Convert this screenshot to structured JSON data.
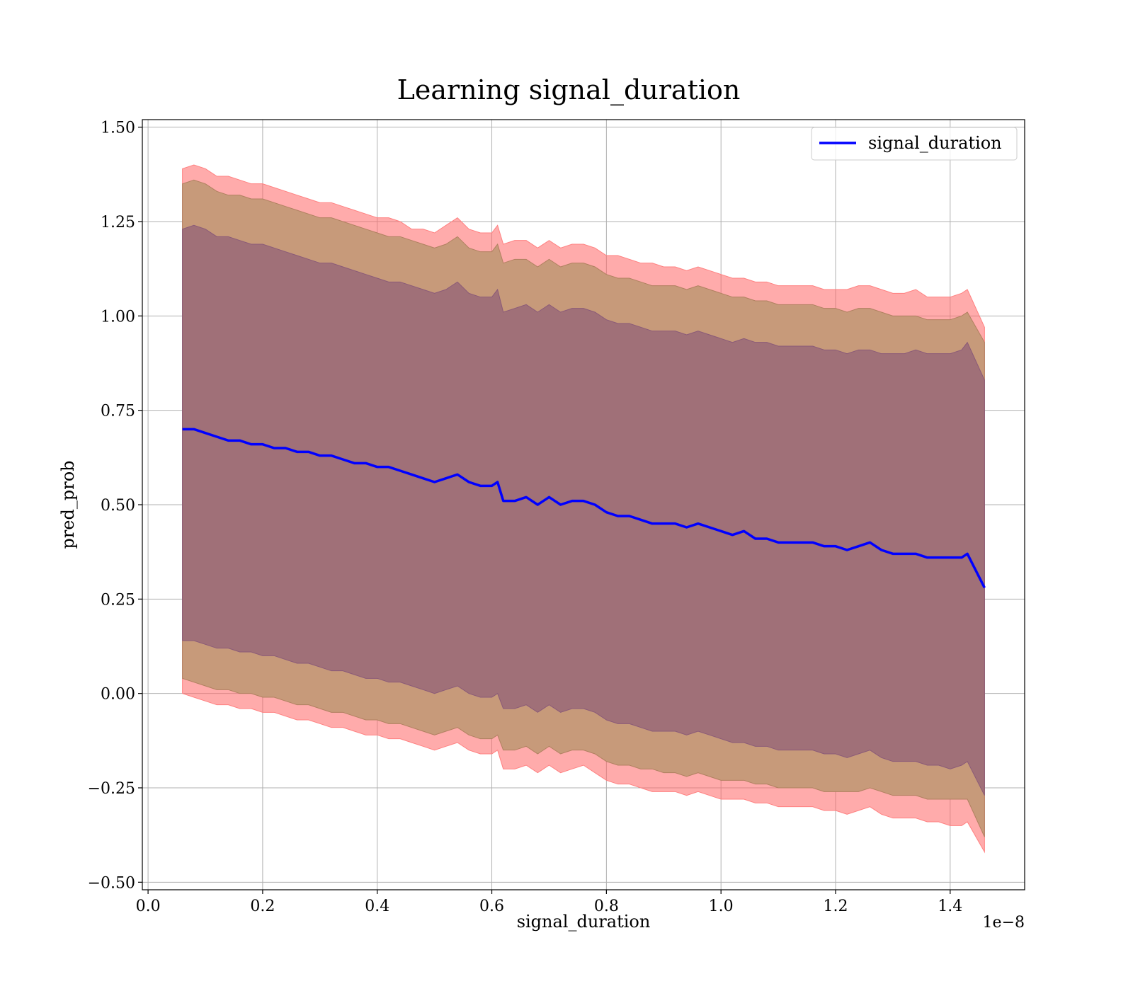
{
  "chart_data": {
    "type": "line",
    "title": "Learning signal_duration",
    "xlabel": "signal_duration",
    "ylabel": "pred_prob",
    "x_scale_label": "1e−8",
    "xlim": [
      -0.01,
      1.53
    ],
    "ylim": [
      -0.52,
      1.52
    ],
    "x_ticks": [
      0.0,
      0.2,
      0.4,
      0.6,
      0.8,
      1.0,
      1.2,
      1.4
    ],
    "x_tick_labels": [
      "0.0",
      "0.2",
      "0.4",
      "0.6",
      "0.8",
      "1.0",
      "1.2",
      "1.4"
    ],
    "y_ticks": [
      -0.5,
      -0.25,
      0.0,
      0.25,
      0.5,
      0.75,
      1.0,
      1.25,
      1.5
    ],
    "y_tick_labels": [
      "−0.50",
      "−0.25",
      "0.00",
      "0.25",
      "0.50",
      "0.75",
      "1.00",
      "1.25",
      "1.50"
    ],
    "grid": true,
    "legend_position": "top-right",
    "colors": {
      "line": "#0000ff",
      "band_outer": "#ff6666",
      "band_middle": "#c79a7a",
      "band_inner": "#a07078",
      "band_outer_edge": "#ff8080",
      "grid": "#b0b0b0"
    },
    "series": [
      {
        "name": "signal_duration",
        "x": [
          0.06,
          0.08,
          0.1,
          0.12,
          0.14,
          0.16,
          0.18,
          0.2,
          0.22,
          0.24,
          0.26,
          0.28,
          0.3,
          0.32,
          0.34,
          0.36,
          0.38,
          0.4,
          0.42,
          0.44,
          0.46,
          0.48,
          0.5,
          0.52,
          0.54,
          0.56,
          0.58,
          0.6,
          0.61,
          0.62,
          0.64,
          0.66,
          0.68,
          0.7,
          0.72,
          0.74,
          0.76,
          0.78,
          0.8,
          0.82,
          0.84,
          0.86,
          0.88,
          0.9,
          0.92,
          0.94,
          0.96,
          0.98,
          1.0,
          1.02,
          1.04,
          1.06,
          1.08,
          1.1,
          1.12,
          1.14,
          1.16,
          1.18,
          1.2,
          1.22,
          1.24,
          1.26,
          1.28,
          1.3,
          1.32,
          1.34,
          1.36,
          1.38,
          1.4,
          1.42,
          1.43,
          1.46
        ],
        "y": [
          0.7,
          0.7,
          0.69,
          0.68,
          0.67,
          0.67,
          0.66,
          0.66,
          0.65,
          0.65,
          0.64,
          0.64,
          0.63,
          0.63,
          0.62,
          0.61,
          0.61,
          0.6,
          0.6,
          0.59,
          0.58,
          0.57,
          0.56,
          0.57,
          0.58,
          0.56,
          0.55,
          0.55,
          0.56,
          0.51,
          0.51,
          0.52,
          0.5,
          0.52,
          0.5,
          0.51,
          0.51,
          0.5,
          0.48,
          0.47,
          0.47,
          0.46,
          0.45,
          0.45,
          0.45,
          0.44,
          0.45,
          0.44,
          0.43,
          0.42,
          0.43,
          0.41,
          0.41,
          0.4,
          0.4,
          0.4,
          0.4,
          0.39,
          0.39,
          0.38,
          0.39,
          0.4,
          0.38,
          0.37,
          0.37,
          0.37,
          0.36,
          0.36,
          0.36,
          0.36,
          0.37,
          0.28
        ]
      }
    ],
    "bands": [
      {
        "name": "outer",
        "upper": [
          1.39,
          1.4,
          1.39,
          1.37,
          1.37,
          1.36,
          1.35,
          1.35,
          1.34,
          1.33,
          1.32,
          1.31,
          1.3,
          1.3,
          1.29,
          1.28,
          1.27,
          1.26,
          1.26,
          1.25,
          1.23,
          1.23,
          1.22,
          1.24,
          1.26,
          1.23,
          1.22,
          1.22,
          1.24,
          1.19,
          1.2,
          1.2,
          1.18,
          1.2,
          1.18,
          1.19,
          1.19,
          1.18,
          1.16,
          1.16,
          1.15,
          1.14,
          1.14,
          1.13,
          1.13,
          1.12,
          1.13,
          1.12,
          1.11,
          1.1,
          1.1,
          1.09,
          1.09,
          1.08,
          1.08,
          1.08,
          1.08,
          1.07,
          1.07,
          1.07,
          1.08,
          1.08,
          1.07,
          1.06,
          1.06,
          1.07,
          1.05,
          1.05,
          1.05,
          1.06,
          1.07,
          0.97
        ],
        "lower": [
          0.0,
          -0.01,
          -0.02,
          -0.03,
          -0.03,
          -0.04,
          -0.04,
          -0.05,
          -0.05,
          -0.06,
          -0.07,
          -0.07,
          -0.08,
          -0.09,
          -0.09,
          -0.1,
          -0.11,
          -0.11,
          -0.12,
          -0.12,
          -0.13,
          -0.14,
          -0.15,
          -0.14,
          -0.13,
          -0.15,
          -0.16,
          -0.16,
          -0.15,
          -0.2,
          -0.2,
          -0.19,
          -0.21,
          -0.19,
          -0.21,
          -0.2,
          -0.19,
          -0.21,
          -0.23,
          -0.24,
          -0.24,
          -0.25,
          -0.26,
          -0.26,
          -0.26,
          -0.27,
          -0.26,
          -0.27,
          -0.28,
          -0.28,
          -0.28,
          -0.29,
          -0.29,
          -0.3,
          -0.3,
          -0.3,
          -0.3,
          -0.31,
          -0.31,
          -0.32,
          -0.31,
          -0.3,
          -0.32,
          -0.33,
          -0.33,
          -0.33,
          -0.34,
          -0.34,
          -0.35,
          -0.35,
          -0.34,
          -0.42
        ]
      },
      {
        "name": "middle",
        "upper": [
          1.35,
          1.36,
          1.35,
          1.33,
          1.32,
          1.32,
          1.31,
          1.31,
          1.3,
          1.29,
          1.28,
          1.27,
          1.26,
          1.26,
          1.25,
          1.24,
          1.23,
          1.22,
          1.21,
          1.21,
          1.2,
          1.19,
          1.18,
          1.19,
          1.21,
          1.18,
          1.17,
          1.17,
          1.19,
          1.14,
          1.15,
          1.15,
          1.13,
          1.15,
          1.13,
          1.14,
          1.14,
          1.13,
          1.11,
          1.1,
          1.1,
          1.09,
          1.08,
          1.08,
          1.08,
          1.07,
          1.08,
          1.07,
          1.06,
          1.05,
          1.05,
          1.04,
          1.04,
          1.03,
          1.03,
          1.03,
          1.03,
          1.02,
          1.02,
          1.01,
          1.02,
          1.02,
          1.01,
          1.0,
          1.0,
          1.0,
          0.99,
          0.99,
          0.99,
          1.0,
          1.01,
          0.93
        ],
        "lower": [
          0.04,
          0.03,
          0.02,
          0.01,
          0.01,
          0.0,
          0.0,
          -0.01,
          -0.01,
          -0.02,
          -0.03,
          -0.03,
          -0.04,
          -0.05,
          -0.05,
          -0.06,
          -0.07,
          -0.07,
          -0.08,
          -0.08,
          -0.09,
          -0.1,
          -0.11,
          -0.1,
          -0.09,
          -0.11,
          -0.12,
          -0.12,
          -0.11,
          -0.15,
          -0.15,
          -0.14,
          -0.16,
          -0.14,
          -0.16,
          -0.15,
          -0.15,
          -0.16,
          -0.18,
          -0.19,
          -0.19,
          -0.2,
          -0.2,
          -0.21,
          -0.21,
          -0.22,
          -0.21,
          -0.22,
          -0.23,
          -0.23,
          -0.23,
          -0.24,
          -0.24,
          -0.25,
          -0.25,
          -0.25,
          -0.25,
          -0.26,
          -0.26,
          -0.26,
          -0.26,
          -0.25,
          -0.26,
          -0.27,
          -0.27,
          -0.27,
          -0.28,
          -0.28,
          -0.28,
          -0.28,
          -0.28,
          -0.38
        ]
      },
      {
        "name": "inner",
        "upper": [
          1.23,
          1.24,
          1.23,
          1.21,
          1.21,
          1.2,
          1.19,
          1.19,
          1.18,
          1.17,
          1.16,
          1.15,
          1.14,
          1.14,
          1.13,
          1.12,
          1.11,
          1.1,
          1.09,
          1.09,
          1.08,
          1.07,
          1.06,
          1.07,
          1.09,
          1.06,
          1.05,
          1.05,
          1.07,
          1.01,
          1.02,
          1.03,
          1.01,
          1.03,
          1.01,
          1.02,
          1.02,
          1.01,
          0.99,
          0.98,
          0.98,
          0.97,
          0.96,
          0.96,
          0.96,
          0.95,
          0.96,
          0.95,
          0.94,
          0.93,
          0.94,
          0.93,
          0.93,
          0.92,
          0.92,
          0.92,
          0.92,
          0.91,
          0.91,
          0.9,
          0.91,
          0.91,
          0.9,
          0.9,
          0.9,
          0.91,
          0.9,
          0.9,
          0.9,
          0.91,
          0.93,
          0.83
        ],
        "lower": [
          0.14,
          0.14,
          0.13,
          0.12,
          0.12,
          0.11,
          0.11,
          0.1,
          0.1,
          0.09,
          0.08,
          0.08,
          0.07,
          0.06,
          0.06,
          0.05,
          0.04,
          0.04,
          0.03,
          0.03,
          0.02,
          0.01,
          0.0,
          0.01,
          0.02,
          0.0,
          -0.01,
          -0.01,
          0.0,
          -0.04,
          -0.04,
          -0.03,
          -0.05,
          -0.03,
          -0.05,
          -0.04,
          -0.04,
          -0.05,
          -0.07,
          -0.08,
          -0.08,
          -0.09,
          -0.1,
          -0.1,
          -0.1,
          -0.11,
          -0.1,
          -0.11,
          -0.12,
          -0.13,
          -0.13,
          -0.14,
          -0.14,
          -0.15,
          -0.15,
          -0.15,
          -0.15,
          -0.16,
          -0.16,
          -0.17,
          -0.16,
          -0.15,
          -0.17,
          -0.18,
          -0.18,
          -0.18,
          -0.19,
          -0.19,
          -0.2,
          -0.19,
          -0.18,
          -0.27
        ]
      }
    ]
  }
}
